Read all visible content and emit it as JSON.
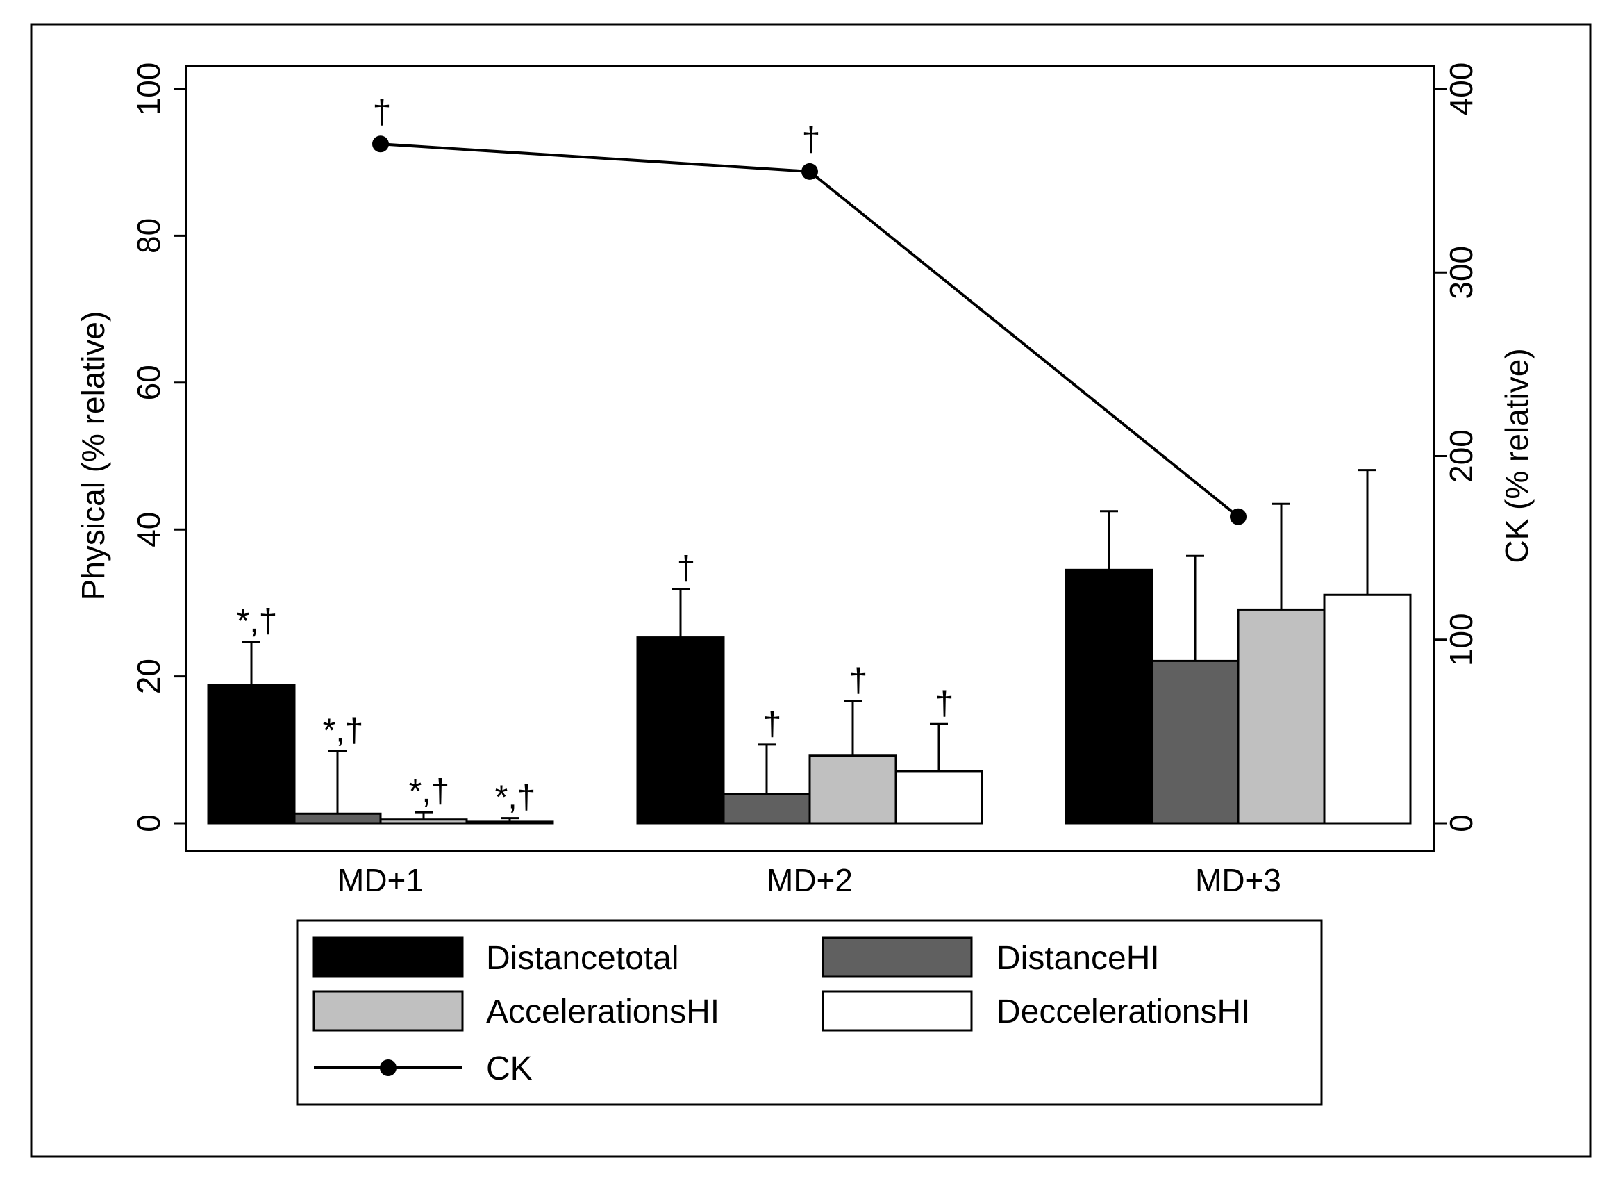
{
  "chart_data": {
    "type": "bar",
    "categories": [
      "MD+1",
      "MD+2",
      "MD+3"
    ],
    "series": [
      {
        "name": "Distancetotal",
        "color": "#000000",
        "values": [
          18.8,
          25.3,
          34.5
        ],
        "sd": [
          5.9,
          6.6,
          8.0
        ],
        "annotations": [
          "*,†",
          "†",
          ""
        ]
      },
      {
        "name": "DistanceHI",
        "color": "#606060",
        "values": [
          1.3,
          4.0,
          22.1
        ],
        "sd": [
          8.5,
          6.7,
          14.3
        ],
        "annotations": [
          "*,†",
          "†",
          ""
        ]
      },
      {
        "name": "AccelerationsHI",
        "color": "#c0c0c0",
        "values": [
          0.5,
          9.2,
          29.1
        ],
        "sd": [
          1.0,
          7.4,
          14.4
        ],
        "annotations": [
          "*,†",
          "†",
          ""
        ]
      },
      {
        "name": "DeccelerationsHI",
        "color": "#ffffff",
        "values": [
          0.2,
          7.1,
          31.1
        ],
        "sd": [
          0.5,
          6.4,
          17.0
        ],
        "annotations": [
          "*,†",
          "†",
          ""
        ]
      }
    ],
    "line": {
      "name": "CK",
      "values": [
        370,
        355,
        167
      ],
      "annotations": [
        "†",
        "†",
        ""
      ]
    },
    "xlabel": "",
    "ylabel": "Physical (% relative)",
    "ylim": [
      0,
      100
    ],
    "yticks": [
      "0",
      "20",
      "40",
      "60",
      "80",
      "100"
    ],
    "y2label": "CK (% relative)",
    "y2lim": [
      0,
      400
    ],
    "y2ticks": [
      "0",
      "100",
      "200",
      "300",
      "400"
    ],
    "legend": {
      "position": "bottom",
      "columns": 2
    }
  }
}
